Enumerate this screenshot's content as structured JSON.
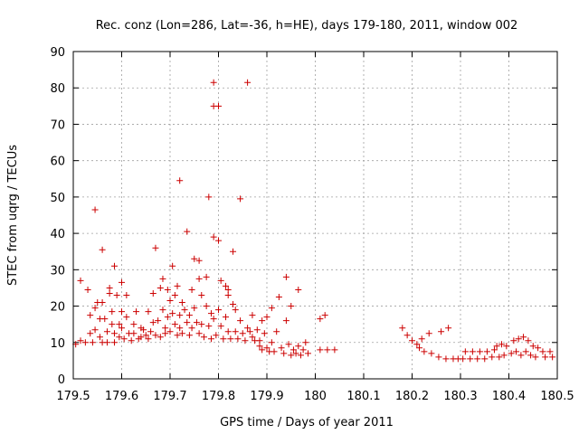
{
  "chart_data": {
    "type": "scatter",
    "title": "Rec. conz (Lon=286, Lat=-36, h=HE), days 179-180, 2011, window 002",
    "xlabel": "GPS time / Days of year 2011",
    "ylabel": "STEC from uqrg / TECUs",
    "xlim": [
      179.5,
      180.5
    ],
    "ylim": [
      0,
      90
    ],
    "x_ticks": [
      "179.5",
      "179.6",
      "179.7",
      "179.8",
      "179.9",
      "180",
      "180.1",
      "180.2",
      "180.3",
      "180.4",
      "180.5"
    ],
    "y_ticks": [
      "0",
      "10",
      "20",
      "30",
      "40",
      "50",
      "60",
      "70",
      "80",
      "90"
    ],
    "grid": true,
    "marker": "plus",
    "color": "#cc0000",
    "series": [
      {
        "points": [
          [
            179.505,
            9.5
          ],
          [
            179.515,
            10.5
          ],
          [
            179.515,
            27
          ],
          [
            179.525,
            10
          ],
          [
            179.53,
            24.5
          ],
          [
            179.535,
            17.5
          ],
          [
            179.535,
            12.5
          ],
          [
            179.54,
            10
          ],
          [
            179.545,
            46.5
          ],
          [
            179.545,
            19.5
          ],
          [
            179.545,
            13.5
          ],
          [
            179.55,
            21
          ],
          [
            179.555,
            16.5
          ],
          [
            179.555,
            11.5
          ],
          [
            179.56,
            35.5
          ],
          [
            179.56,
            21
          ],
          [
            179.56,
            10
          ],
          [
            179.565,
            16.5
          ],
          [
            179.57,
            13
          ],
          [
            179.57,
            10
          ],
          [
            179.575,
            25
          ],
          [
            179.575,
            23.5
          ],
          [
            179.58,
            18.5
          ],
          [
            179.58,
            15
          ],
          [
            179.585,
            31
          ],
          [
            179.585,
            12.5
          ],
          [
            179.585,
            10
          ],
          [
            179.59,
            23
          ],
          [
            179.595,
            15
          ],
          [
            179.595,
            11.5
          ],
          [
            179.6,
            26.5
          ],
          [
            179.6,
            18.5
          ],
          [
            179.6,
            14
          ],
          [
            179.605,
            11
          ],
          [
            179.61,
            23
          ],
          [
            179.61,
            17
          ],
          [
            179.615,
            12.5
          ],
          [
            179.62,
            10.5
          ],
          [
            179.625,
            15
          ],
          [
            179.625,
            12.5
          ],
          [
            179.63,
            18.5
          ],
          [
            179.635,
            11
          ],
          [
            179.64,
            14
          ],
          [
            179.64,
            11.5
          ],
          [
            179.645,
            13.5
          ],
          [
            179.65,
            12
          ],
          [
            179.655,
            18.5
          ],
          [
            179.655,
            11
          ],
          [
            179.66,
            13
          ],
          [
            179.665,
            15.5
          ],
          [
            179.665,
            23.5
          ],
          [
            179.67,
            36
          ],
          [
            179.67,
            12
          ],
          [
            179.675,
            16
          ],
          [
            179.68,
            11.5
          ],
          [
            179.68,
            25
          ],
          [
            179.685,
            19
          ],
          [
            179.685,
            27.5
          ],
          [
            179.69,
            14
          ],
          [
            179.69,
            12.5
          ],
          [
            179.695,
            24.5
          ],
          [
            179.695,
            17
          ],
          [
            179.7,
            21.5
          ],
          [
            179.7,
            13
          ],
          [
            179.705,
            31
          ],
          [
            179.705,
            18
          ],
          [
            179.71,
            15
          ],
          [
            179.71,
            23
          ],
          [
            179.715,
            12
          ],
          [
            179.715,
            25.5
          ],
          [
            179.72,
            54.5
          ],
          [
            179.72,
            17.5
          ],
          [
            179.72,
            14
          ],
          [
            179.725,
            21
          ],
          [
            179.725,
            12.5
          ],
          [
            179.73,
            19
          ],
          [
            179.735,
            40.5
          ],
          [
            179.735,
            15.5
          ],
          [
            179.74,
            17.5
          ],
          [
            179.74,
            12
          ],
          [
            179.745,
            24.5
          ],
          [
            179.745,
            14
          ],
          [
            179.75,
            33
          ],
          [
            179.75,
            19.5
          ],
          [
            179.755,
            15.5
          ],
          [
            179.76,
            32.5
          ],
          [
            179.76,
            27.5
          ],
          [
            179.76,
            12.5
          ],
          [
            179.765,
            23
          ],
          [
            179.765,
            15
          ],
          [
            179.77,
            11.5
          ],
          [
            179.775,
            28
          ],
          [
            179.775,
            20
          ],
          [
            179.78,
            50
          ],
          [
            179.78,
            14.5
          ],
          [
            179.785,
            18
          ],
          [
            179.785,
            11
          ],
          [
            179.79,
            81.5
          ],
          [
            179.79,
            75
          ],
          [
            179.79,
            39
          ],
          [
            179.79,
            16.5
          ],
          [
            179.795,
            12
          ],
          [
            179.8,
            75
          ],
          [
            179.8,
            38
          ],
          [
            179.8,
            19
          ],
          [
            179.805,
            27
          ],
          [
            179.805,
            14.5
          ],
          [
            179.81,
            11
          ],
          [
            179.815,
            25.5
          ],
          [
            179.815,
            17
          ],
          [
            179.82,
            24.5
          ],
          [
            179.82,
            23
          ],
          [
            179.82,
            13
          ],
          [
            179.825,
            11
          ],
          [
            179.83,
            35
          ],
          [
            179.83,
            20.5
          ],
          [
            179.835,
            19
          ],
          [
            179.835,
            13
          ],
          [
            179.84,
            11
          ],
          [
            179.845,
            49.5
          ],
          [
            179.845,
            16
          ],
          [
            179.85,
            12.5
          ],
          [
            179.855,
            10.5
          ],
          [
            179.86,
            81.5
          ],
          [
            179.86,
            14
          ],
          [
            179.865,
            13
          ],
          [
            179.87,
            17.5
          ],
          [
            179.87,
            11.5
          ],
          [
            179.875,
            10.5
          ],
          [
            179.88,
            13.5
          ],
          [
            179.885,
            10.5
          ],
          [
            179.885,
            9
          ],
          [
            179.89,
            16
          ],
          [
            179.89,
            8
          ],
          [
            179.895,
            12.5
          ],
          [
            179.9,
            17
          ],
          [
            179.9,
            8.5
          ],
          [
            179.905,
            7.5
          ],
          [
            179.91,
            19.5
          ],
          [
            179.91,
            10
          ],
          [
            179.915,
            7.5
          ],
          [
            179.92,
            13
          ],
          [
            179.925,
            22.5
          ],
          [
            179.93,
            8.5
          ],
          [
            179.935,
            7
          ],
          [
            179.94,
            28
          ],
          [
            179.94,
            16
          ],
          [
            179.945,
            9.5
          ],
          [
            179.95,
            20
          ],
          [
            179.95,
            6.5
          ],
          [
            179.955,
            8
          ],
          [
            179.96,
            7
          ],
          [
            179.965,
            24.5
          ],
          [
            179.965,
            9
          ],
          [
            179.97,
            6.5
          ],
          [
            179.975,
            8
          ],
          [
            179.98,
            10
          ],
          [
            179.985,
            7
          ],
          [
            180.01,
            16.5
          ],
          [
            180.01,
            8
          ],
          [
            180.02,
            17.5
          ],
          [
            180.025,
            8
          ],
          [
            180.04,
            8
          ],
          [
            180.18,
            14
          ],
          [
            180.19,
            12
          ],
          [
            180.2,
            10.5
          ],
          [
            180.21,
            9.5
          ],
          [
            180.215,
            8.5
          ],
          [
            180.22,
            11
          ],
          [
            180.225,
            7.5
          ],
          [
            180.235,
            12.5
          ],
          [
            180.24,
            7
          ],
          [
            180.255,
            6
          ],
          [
            180.26,
            13
          ],
          [
            180.27,
            5.5
          ],
          [
            180.275,
            14
          ],
          [
            180.285,
            5.5
          ],
          [
            180.295,
            5.5
          ],
          [
            180.305,
            5.5
          ],
          [
            180.31,
            7.5
          ],
          [
            180.32,
            5.5
          ],
          [
            180.325,
            7.5
          ],
          [
            180.335,
            5.5
          ],
          [
            180.34,
            7.5
          ],
          [
            180.35,
            5.5
          ],
          [
            180.355,
            7.5
          ],
          [
            180.365,
            6
          ],
          [
            180.37,
            8
          ],
          [
            180.375,
            9
          ],
          [
            180.38,
            6
          ],
          [
            180.385,
            9.5
          ],
          [
            180.39,
            6.5
          ],
          [
            180.395,
            9
          ],
          [
            180.405,
            7
          ],
          [
            180.41,
            10.5
          ],
          [
            180.415,
            7.5
          ],
          [
            180.42,
            11
          ],
          [
            180.425,
            6.5
          ],
          [
            180.43,
            11.5
          ],
          [
            180.435,
            7.5
          ],
          [
            180.44,
            10.5
          ],
          [
            180.445,
            6.5
          ],
          [
            180.45,
            9
          ],
          [
            180.455,
            6
          ],
          [
            180.46,
            8.5
          ],
          [
            180.47,
            7.5
          ],
          [
            180.475,
            6
          ],
          [
            180.485,
            7.5
          ],
          [
            180.49,
            6
          ]
        ]
      }
    ]
  }
}
